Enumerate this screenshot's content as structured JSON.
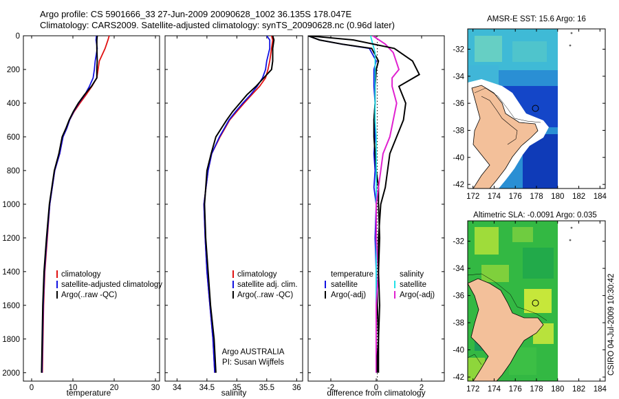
{
  "header": {
    "line1": "Argo profile: CS 5901666_33 27-Jun-2009 20090628_1002 36.135S 178.047E",
    "line2": "Climatology: CARS2009. Satellite-adjusted climatology: synTS_20090628.nc (0.96d later)"
  },
  "colors": {
    "climatology": "#e01010",
    "satellite": "#1010e0",
    "argo": "#000000",
    "salinity_satellite": "#20e0e8",
    "salinity_argo": "#e020d0"
  },
  "chart_data": [
    {
      "type": "line",
      "name": "temperature-panel",
      "xlabel": "temperature",
      "xlim": [
        -2,
        31
      ],
      "ylim": [
        0,
        2050
      ],
      "xticks": [
        "0",
        "10",
        "20",
        "30"
      ],
      "yticks": [
        "0",
        "200",
        "400",
        "600",
        "800",
        "1000",
        "1200",
        "1400",
        "1600",
        "1800",
        "2000"
      ],
      "legend": [
        "climatology",
        "satellite-adjusted climatology",
        "Argo(..raw -QC)"
      ],
      "series": [
        {
          "name": "climatology",
          "x": [
            18.8,
            18.5,
            17.8,
            16.4,
            16.1,
            15.8,
            14.6,
            13.2,
            11.7,
            10.3,
            9.2,
            8.5,
            7.6,
            6.8,
            5.6,
            4.4,
            3.8,
            3.2,
            2.9,
            2.6
          ],
          "y": [
            0,
            25,
            75,
            150,
            200,
            250,
            300,
            350,
            400,
            450,
            500,
            550,
            600,
            700,
            800,
            1000,
            1200,
            1400,
            1600,
            2000
          ]
        },
        {
          "name": "satellite-adjusted climatology",
          "x": [
            15.7,
            15.6,
            15.9,
            15.4,
            15.2,
            14.9,
            14.0,
            12.9,
            11.4,
            10.2,
            9.2,
            8.5,
            7.6,
            6.8,
            5.6,
            4.4,
            3.7,
            3.1,
            2.8,
            2.5
          ],
          "y": [
            0,
            25,
            75,
            150,
            200,
            250,
            300,
            350,
            400,
            450,
            500,
            550,
            600,
            700,
            800,
            1000,
            1200,
            1400,
            1600,
            2000
          ]
        },
        {
          "name": "Argo(..raw -QC)",
          "x": [
            15.9,
            15.8,
            15.8,
            15.9,
            15.8,
            15.8,
            14.5,
            12.8,
            11.3,
            10.1,
            9.1,
            8.3,
            7.4,
            6.6,
            5.5,
            4.3,
            3.6,
            3.0,
            2.7,
            2.4
          ],
          "y": [
            0,
            25,
            75,
            150,
            200,
            250,
            300,
            350,
            400,
            450,
            500,
            550,
            600,
            700,
            800,
            1000,
            1200,
            1400,
            1600,
            2000
          ]
        }
      ]
    },
    {
      "type": "line",
      "name": "salinity-panel",
      "xlabel": "salinity",
      "xlim": [
        33.8,
        36.1
      ],
      "ylim": [
        0,
        2050
      ],
      "xticks": [
        "34",
        "34.5",
        "35",
        "35.5",
        "36"
      ],
      "legend": [
        "climatology",
        "satellite adj. clim.",
        "Argo(..raw -QC)"
      ],
      "annotation": [
        "Argo AUSTRALIA",
        "PI: Susan Wijffels"
      ],
      "series": [
        {
          "name": "climatology",
          "x": [
            35.58,
            35.6,
            35.58,
            35.55,
            35.52,
            35.48,
            35.38,
            35.25,
            35.12,
            35.0,
            34.88,
            34.8,
            34.72,
            34.58,
            34.52,
            34.45,
            34.47,
            34.5,
            34.55,
            34.6,
            34.63
          ],
          "y": [
            0,
            25,
            75,
            150,
            200,
            250,
            300,
            350,
            400,
            450,
            500,
            550,
            600,
            700,
            800,
            1000,
            1200,
            1400,
            1600,
            1800,
            2000
          ]
        },
        {
          "name": "satellite adj. clim.",
          "x": [
            35.5,
            35.55,
            35.55,
            35.5,
            35.48,
            35.43,
            35.34,
            35.23,
            35.1,
            34.98,
            34.87,
            34.79,
            34.71,
            34.58,
            34.52,
            34.45,
            34.47,
            34.5,
            34.55,
            34.6,
            34.63
          ],
          "y": [
            0,
            25,
            75,
            150,
            200,
            250,
            300,
            350,
            400,
            450,
            500,
            550,
            600,
            700,
            800,
            1000,
            1200,
            1400,
            1600,
            1800,
            2000
          ]
        },
        {
          "name": "Argo(..raw -QC)",
          "x": [
            35.6,
            35.62,
            35.6,
            35.6,
            35.58,
            35.45,
            35.32,
            35.17,
            35.05,
            34.93,
            34.83,
            34.74,
            34.65,
            34.57,
            34.5,
            34.46,
            34.48,
            34.52,
            34.56,
            34.62,
            34.65
          ],
          "y": [
            0,
            25,
            75,
            150,
            200,
            250,
            300,
            350,
            400,
            450,
            500,
            550,
            600,
            700,
            800,
            1000,
            1200,
            1400,
            1600,
            1800,
            2000
          ]
        }
      ]
    },
    {
      "type": "line",
      "name": "difference-panel",
      "xlabel": "difference from climatology",
      "xlim": [
        -3,
        3
      ],
      "ylim": [
        0,
        2050
      ],
      "xticks": [
        "-2",
        "0",
        "2"
      ],
      "legend_headers": [
        "temperature",
        "salinity"
      ],
      "legend_left": [
        "satellite",
        "Argo(-adj)"
      ],
      "legend_right": [
        "satellite",
        "Argo(-adj)"
      ],
      "series": [
        {
          "name": "temperature satellite",
          "x": [
            -3.0,
            -2.5,
            -1.5,
            -0.3,
            0.0,
            -0.1,
            -0.1,
            -0.05,
            -0.1,
            -0.05,
            -0.1,
            -0.05,
            -0.1,
            0.0,
            -0.05,
            0.0,
            0.0,
            0.0,
            0.0,
            0.0
          ],
          "y": [
            0,
            25,
            50,
            75,
            150,
            200,
            300,
            400,
            500,
            600,
            700,
            800,
            900,
            1000,
            1200,
            1400,
            1500,
            1600,
            1800,
            2000
          ]
        },
        {
          "name": "temperature Argo(-adj)",
          "x": [
            -3.0,
            -2.5,
            -1.5,
            -0.2,
            0.1,
            0.0,
            -0.05,
            -0.05,
            -0.1,
            -0.1,
            -0.05,
            0.0,
            0.1,
            0.1,
            0.15,
            0.1,
            0.05,
            0.05,
            0.1,
            0.1
          ],
          "y": [
            0,
            25,
            50,
            75,
            150,
            200,
            300,
            400,
            500,
            600,
            700,
            800,
            900,
            1000,
            1200,
            1400,
            1500,
            1600,
            1800,
            2000
          ]
        },
        {
          "name": "salinity satellite",
          "x": [
            -0.25,
            -0.15,
            -0.05,
            -0.05,
            -0.05,
            -0.05,
            -0.05,
            0.0,
            0.0,
            0.0,
            0.0,
            0.0,
            0.0,
            0.0,
            0.0
          ],
          "y": [
            0,
            50,
            100,
            200,
            300,
            400,
            500,
            600,
            700,
            800,
            1000,
            1200,
            1400,
            1600,
            2000
          ]
        },
        {
          "name": "salinity Argo(-adj)",
          "x": [
            -0.15,
            0.4,
            0.75,
            1.0,
            0.7,
            0.7,
            0.9,
            0.6,
            0.3,
            0.2,
            0.0,
            0.0,
            0.1,
            0.0,
            0.0,
            0.0
          ],
          "y": [
            0,
            50,
            100,
            200,
            250,
            300,
            400,
            600,
            700,
            800,
            1000,
            1200,
            1400,
            1600,
            1800,
            2000
          ]
        },
        {
          "name": "salinity-like black",
          "x": [
            -3.0,
            -1.0,
            0.8,
            1.6,
            1.9,
            1.0,
            1.3,
            1.2,
            0.9,
            0.6,
            0.5,
            0.4,
            0.2,
            0.1,
            0.1,
            0.15,
            0.1,
            0.05,
            0.05
          ],
          "y": [
            0,
            25,
            75,
            150,
            230,
            300,
            400,
            500,
            600,
            700,
            800,
            900,
            1000,
            1200,
            1400,
            1600,
            1800,
            1900,
            2000
          ]
        }
      ]
    },
    {
      "type": "heatmap",
      "name": "sst-map",
      "title": "AMSR-E SST: 15.6 Argo: 16",
      "xlim": [
        171.5,
        184.5
      ],
      "ylim": [
        -42.3,
        -30.5
      ],
      "xticks": [
        "172",
        "174",
        "176",
        "178",
        "180",
        "182",
        "184"
      ],
      "yticks": [
        "-32",
        "-34",
        "-36",
        "-38",
        "-40",
        "-42"
      ],
      "float_position": {
        "lon": 178.047,
        "lat": -36.135
      }
    },
    {
      "type": "heatmap",
      "name": "sla-map",
      "title": "Altimetric SLA: -0.0091  Argo: 0.035",
      "xlim": [
        171.5,
        184.5
      ],
      "ylim": [
        -42.3,
        -30.5
      ],
      "xticks": [
        "172",
        "174",
        "176",
        "178",
        "180",
        "182",
        "184"
      ],
      "yticks": [
        "-32",
        "-34",
        "-36",
        "-38",
        "-40",
        "-42"
      ],
      "float_position": {
        "lon": 178.047,
        "lat": -36.135
      }
    }
  ],
  "side_label": "CSIRO  04-Jul-2009 10:30:42"
}
